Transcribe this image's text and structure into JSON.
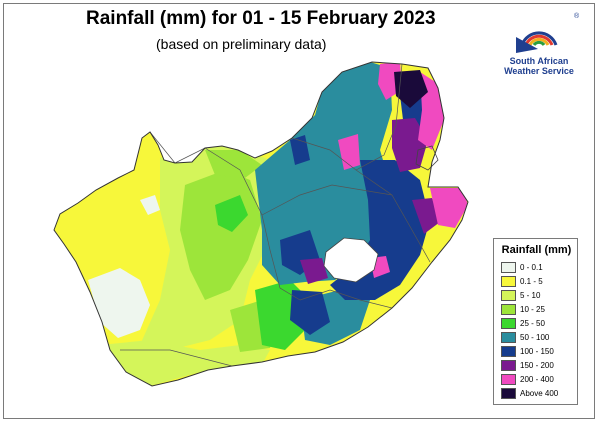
{
  "title": "Rainfall (mm) for 01 - 15 February 2023",
  "subtitle": "(based on preliminary data)",
  "logo": {
    "line1": "South African",
    "line2": "Weather Service",
    "registered_mark": "®"
  },
  "legend": {
    "title": "Rainfall (mm)",
    "items": [
      {
        "label": "0 - 0.1",
        "color": "#eef6ee"
      },
      {
        "label": "0.1 - 5",
        "color": "#f7f73a"
      },
      {
        "label": "5 - 10",
        "color": "#d4f55a"
      },
      {
        "label": "10 - 25",
        "color": "#9de53a"
      },
      {
        "label": "25 - 50",
        "color": "#3bd82f"
      },
      {
        "label": "50 - 100",
        "color": "#2a8d9e"
      },
      {
        "label": "100 - 150",
        "color": "#163c8d"
      },
      {
        "label": "150 - 200",
        "color": "#7a1a8f"
      },
      {
        "label": "200 - 400",
        "color": "#f04ac0"
      },
      {
        "label": "Above 400",
        "color": "#1a0a3a"
      }
    ]
  }
}
